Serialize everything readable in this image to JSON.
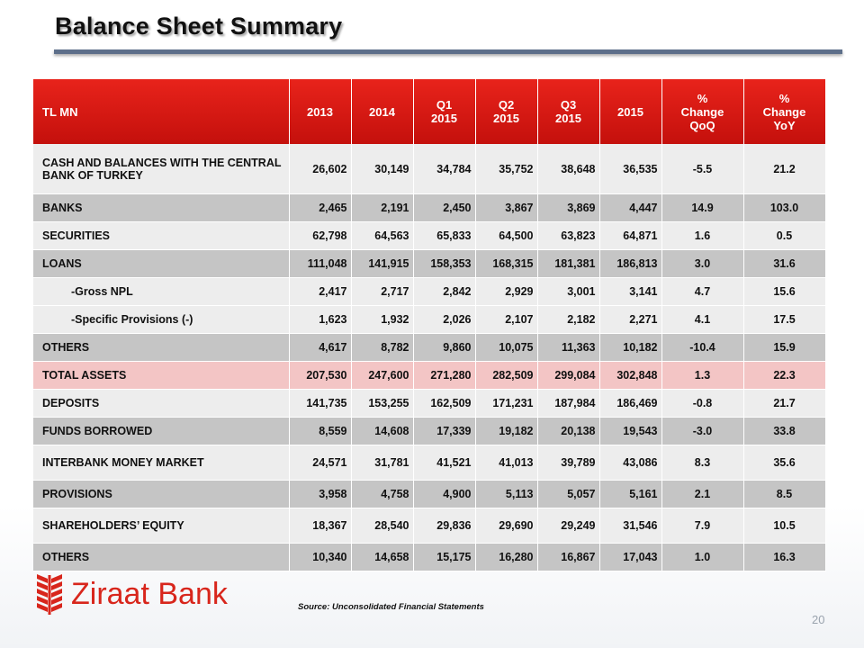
{
  "title": "Balance Sheet Summary",
  "table": {
    "headers": [
      [
        "TL MN"
      ],
      [
        "2013"
      ],
      [
        "2014"
      ],
      [
        "Q1",
        "2015"
      ],
      [
        "Q2",
        "2015"
      ],
      [
        "Q3",
        "2015"
      ],
      [
        "2015"
      ],
      [
        "%",
        "Change",
        "QoQ"
      ],
      [
        "%",
        "Change",
        "YoY"
      ]
    ],
    "rows": [
      {
        "label": "CASH AND BALANCES WITH THE CENTRAL BANK OF TURKEY",
        "values": [
          "26,602",
          "30,149",
          "34,784",
          "35,752",
          "38,648",
          "36,535",
          "-5.5",
          "21.2"
        ]
      },
      {
        "label": "BANKS",
        "values": [
          "2,465",
          "2,191",
          "2,450",
          "3,867",
          "3,869",
          "4,447",
          "14.9",
          "103.0"
        ]
      },
      {
        "label": "SECURITIES",
        "values": [
          "62,798",
          "64,563",
          "65,833",
          "64,500",
          "63,823",
          "64,871",
          "1.6",
          "0.5"
        ]
      },
      {
        "label": "LOANS",
        "values": [
          "111,048",
          "141,915",
          "158,353",
          "168,315",
          "181,381",
          "186,813",
          "3.0",
          "31.6"
        ]
      },
      {
        "label": "-Gross NPL",
        "values": [
          "2,417",
          "2,717",
          "2,842",
          "2,929",
          "3,001",
          "3,141",
          "4.7",
          "15.6"
        ]
      },
      {
        "label": "-Specific Provisions (-)",
        "values": [
          "1,623",
          "1,932",
          "2,026",
          "2,107",
          "2,182",
          "2,271",
          "4.1",
          "17.5"
        ]
      },
      {
        "label": "OTHERS",
        "values": [
          "4,617",
          "8,782",
          "9,860",
          "10,075",
          "11,363",
          "10,182",
          "-10.4",
          "15.9"
        ]
      },
      {
        "label": "TOTAL ASSETS",
        "values": [
          "207,530",
          "247,600",
          "271,280",
          "282,509",
          "299,084",
          "302,848",
          "1.3",
          "22.3"
        ]
      },
      {
        "label": "DEPOSITS",
        "values": [
          "141,735",
          "153,255",
          "162,509",
          "171,231",
          "187,984",
          "186,469",
          "-0.8",
          "21.7"
        ]
      },
      {
        "label": "FUNDS BORROWED",
        "values": [
          "8,559",
          "14,608",
          "17,339",
          "19,182",
          "20,138",
          "19,543",
          "-3.0",
          "33.8"
        ]
      },
      {
        "label": "INTERBANK MONEY MARKET",
        "values": [
          "24,571",
          "31,781",
          "41,521",
          "41,013",
          "39,789",
          "43,086",
          "8.3",
          "35.6"
        ]
      },
      {
        "label": "PROVISIONS",
        "values": [
          "3,958",
          "4,758",
          "4,900",
          "5,113",
          "5,057",
          "5,161",
          "2.1",
          "8.5"
        ]
      },
      {
        "label": "SHAREHOLDERS’ EQUITY",
        "values": [
          "18,367",
          "28,540",
          "29,836",
          "29,690",
          "29,249",
          "31,546",
          "7.9",
          "10.5"
        ]
      },
      {
        "label": "OTHERS",
        "values": [
          "10,340",
          "14,658",
          "15,175",
          "16,280",
          "16,867",
          "17,043",
          "1.0",
          "16.3"
        ]
      }
    ]
  },
  "logo": {
    "text": "Ziraat Bank",
    "color": "#d8261c",
    "icon": "wheat-logo-icon"
  },
  "source": "Source: Unconsolidated Financial Statements",
  "page_number": "20",
  "colors": {
    "header_red": "#d81e16",
    "row_dark": "#c5c5c5",
    "row_light": "#ededed",
    "total_assets": "#f3c5c5"
  }
}
